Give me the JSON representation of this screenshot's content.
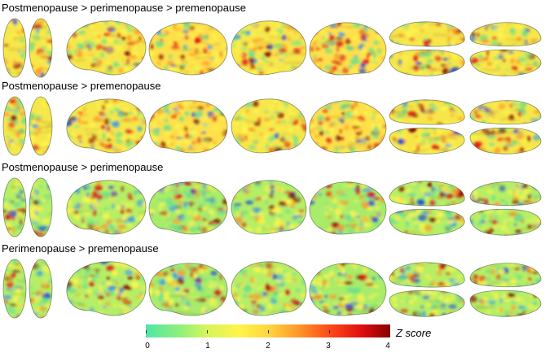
{
  "rows": [
    {
      "title": "Postmenopause > perimenopause > premenopause"
    },
    {
      "title": "Postmenopause > premenopause"
    },
    {
      "title": "Postmenopause > perimenopause"
    },
    {
      "title": "Perimenopause > premenopause"
    }
  ],
  "colorbar": {
    "title": "Z score",
    "ticks": [
      "0",
      "1",
      "2",
      "3",
      "4"
    ],
    "range": [
      0,
      4
    ],
    "colors": [
      "#4fe6a6",
      "#fff44a",
      "#ff9a2a",
      "#e0100f",
      "#8a0000"
    ]
  }
}
